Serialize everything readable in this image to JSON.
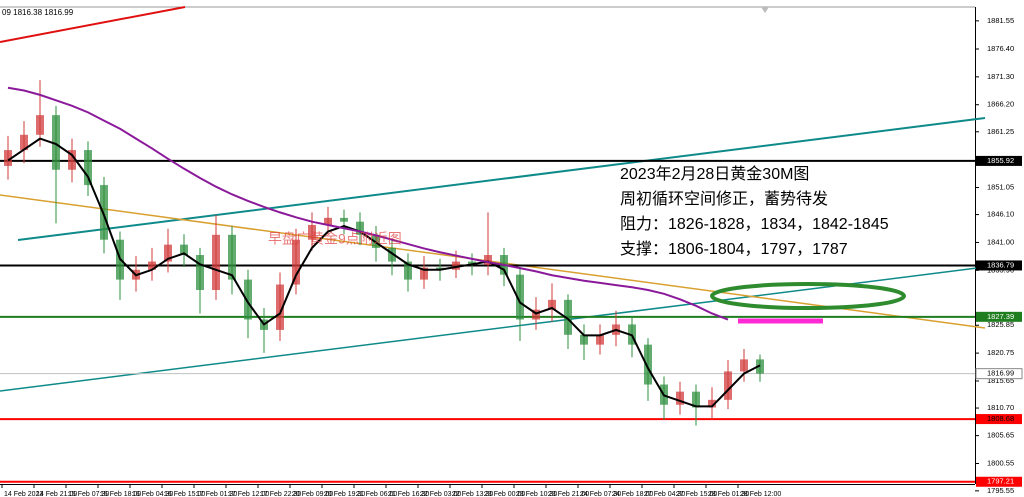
{
  "chart_data": {
    "type": "candlestick",
    "header": "09 1816.38 1816.99",
    "ylim": [
      1796.8,
      1883.9
    ],
    "yticks": [
      {
        "value": 1881.55,
        "label": "1881.55"
      },
      {
        "value": 1876.4,
        "label": "1876.40"
      },
      {
        "value": 1871.3,
        "label": "1871.30"
      },
      {
        "value": 1866.2,
        "label": "1866.20"
      },
      {
        "value": 1861.25,
        "label": "1861.25"
      },
      {
        "value": 1851.05,
        "label": "1851.05"
      },
      {
        "value": 1846.1,
        "label": "1846.10"
      },
      {
        "value": 1841.0,
        "label": "1841.00"
      },
      {
        "value": 1835.9,
        "label": "1835.90"
      },
      {
        "value": 1825.85,
        "label": "1825.85"
      },
      {
        "value": 1820.75,
        "label": "1820.75"
      },
      {
        "value": 1815.65,
        "label": "1815.65"
      },
      {
        "value": 1810.7,
        "label": "1810.70"
      },
      {
        "value": 1805.65,
        "label": "1805.65"
      },
      {
        "value": 1800.55,
        "label": "1800.55"
      },
      {
        "value": 1795.55,
        "label": "1795.55"
      }
    ],
    "xlabels": [
      "14 Feb 2023",
      "14 Feb 21:00",
      "15 Feb 07:30",
      "15 Feb 18:00",
      "16 Feb 04:30",
      "16 Feb 15:00",
      "17 Feb 01:30",
      "17 Feb 12:00",
      "17 Feb 22:30",
      "20 Feb 09:00",
      "20 Feb 19:30",
      "21 Feb 06:00",
      "21 Feb 16:30",
      "22 Feb 03:00",
      "22 Feb 13:30",
      "23 Feb 00:00",
      "23 Feb 10:30",
      "23 Feb 21:00",
      "24 Feb 07:30",
      "24 Feb 18:00",
      "27 Feb 04:30",
      "27 Feb 15:00",
      "28 Feb 01:30",
      "28 Feb 12:00"
    ],
    "up_color": "#d23b3b",
    "down_color": "#2f8f3f",
    "open": [
      1855.0,
      1857.9,
      1860.7,
      1864.3,
      1854.3,
      1857.9,
      1851.5,
      1841.5,
      1834.2,
      1836.0,
      1837.5,
      1840.6,
      1838.7,
      1832.3,
      1842.4,
      1834.2,
      1826.9,
      1825.0,
      1833.3,
      1841.5,
      1844.2,
      1845.5,
      1844.8,
      1842.4,
      1840.0,
      1837.5,
      1834.2,
      1836.4,
      1836.0,
      1837.5,
      1836.9,
      1838.7,
      1835.1,
      1826.9,
      1828.7,
      1830.5,
      1824.1,
      1822.3,
      1824.1,
      1826.0,
      1822.3,
      1815.0,
      1811.3,
      1813.7,
      1810.8,
      1812.2,
      1817.4,
      1819.6
    ],
    "high": [
      1860.5,
      1863.2,
      1870.7,
      1866.0,
      1860.0,
      1859.5,
      1853.0,
      1843.0,
      1838.5,
      1840.0,
      1843.5,
      1842.5,
      1840.0,
      1846.0,
      1844.0,
      1836.0,
      1829.0,
      1835.5,
      1843.5,
      1846.5,
      1847.5,
      1847.0,
      1846.5,
      1844.0,
      1841.5,
      1839.0,
      1838.5,
      1838.0,
      1839.5,
      1839.0,
      1846.5,
      1840.0,
      1836.5,
      1831.0,
      1833.5,
      1831.5,
      1826.0,
      1826.0,
      1828.5,
      1827.5,
      1823.5,
      1816.5,
      1815.5,
      1815.0,
      1814.5,
      1819.5,
      1821.5,
      1820.5
    ],
    "low": [
      1852.5,
      1855.5,
      1858.5,
      1844.5,
      1852.0,
      1849.5,
      1839.0,
      1830.5,
      1832.0,
      1834.0,
      1835.5,
      1836.5,
      1828.0,
      1830.5,
      1831.5,
      1823.5,
      1820.8,
      1823.0,
      1831.5,
      1839.5,
      1842.5,
      1842.5,
      1840.5,
      1837.5,
      1835.0,
      1832.0,
      1832.5,
      1834.0,
      1834.5,
      1835.0,
      1835.0,
      1833.0,
      1823.0,
      1825.0,
      1826.5,
      1821.5,
      1819.5,
      1820.5,
      1822.0,
      1820.0,
      1812.0,
      1808.5,
      1809.5,
      1807.5,
      1808.5,
      1810.5,
      1815.5,
      1815.5
    ],
    "close": [
      1857.9,
      1860.7,
      1864.3,
      1854.3,
      1857.9,
      1851.5,
      1841.5,
      1834.2,
      1836.0,
      1837.5,
      1840.6,
      1838.7,
      1832.3,
      1842.4,
      1834.2,
      1826.9,
      1825.0,
      1833.3,
      1841.5,
      1844.2,
      1845.5,
      1844.8,
      1842.4,
      1840.0,
      1837.5,
      1834.2,
      1836.4,
      1836.0,
      1837.5,
      1836.9,
      1838.7,
      1835.1,
      1826.9,
      1828.7,
      1830.5,
      1824.1,
      1822.3,
      1824.1,
      1826.0,
      1822.3,
      1815.0,
      1811.3,
      1813.7,
      1810.8,
      1812.2,
      1817.4,
      1819.6,
      1817.0
    ],
    "moving_averages": [
      {
        "color": "#000000",
        "values": [
          1856,
          1858,
          1860,
          1859,
          1857,
          1853,
          1846,
          1838,
          1835,
          1836,
          1838,
          1839,
          1837,
          1836,
          1835,
          1830,
          1826,
          1828,
          1835,
          1840,
          1843,
          1844,
          1843,
          1841,
          1839,
          1837,
          1836,
          1836,
          1836.5,
          1837,
          1837.5,
          1836,
          1830,
          1828,
          1829,
          1827,
          1824,
          1824,
          1825,
          1824,
          1818,
          1813,
          1812,
          1811,
          1811,
          1814,
          1817,
          1818.5
        ]
      },
      {
        "color": "#8b1a9b",
        "values": [
          1869.3,
          1868.8,
          1868.0,
          1867.0,
          1866.0,
          1864.8,
          1863.3,
          1861.8,
          1860.0,
          1858.2,
          1856.3,
          1854.5,
          1852.8,
          1851.2,
          1849.8,
          1848.6,
          1847.5,
          1846.5,
          1845.6,
          1844.8,
          1844.2,
          1843.6,
          1843.0,
          1842.3,
          1841.5,
          1840.7,
          1839.9,
          1839.2,
          1838.6,
          1838.0,
          1837.4,
          1836.9,
          1836.3,
          1835.7,
          1835.0,
          1834.5,
          1834.0,
          1833.6,
          1833.2,
          1832.8,
          1832.3,
          1831.6,
          1830.6,
          1829.4,
          1828.0,
          1826.9,
          null,
          null
        ]
      }
    ],
    "levels": [
      {
        "value": 1855.92,
        "color": "#000000",
        "text_color": "#ffffff"
      },
      {
        "value": 1836.79,
        "color": "#000000",
        "text_color": "#ffffff"
      },
      {
        "value": 1827.39,
        "color": "#1e7d1e",
        "text_color": "#ffffff"
      },
      {
        "value": 1816.99,
        "color": "#c0c0c0",
        "text_color": "#000000"
      },
      {
        "value": 1808.68,
        "color": "#ff0000",
        "text_color": "#000000"
      },
      {
        "value": 1797.21,
        "color": "#ff0000",
        "text_color": "#ffffff"
      }
    ],
    "watermark": "早盘广黄金9点附近图",
    "annotation": [
      "2023年2月28日黄金30M图",
      "周初循环空间修正，蓄势待发",
      "阻力：1826-1828，1834，1842-1845",
      "支撑：1806-1804，1797，1787"
    ]
  }
}
